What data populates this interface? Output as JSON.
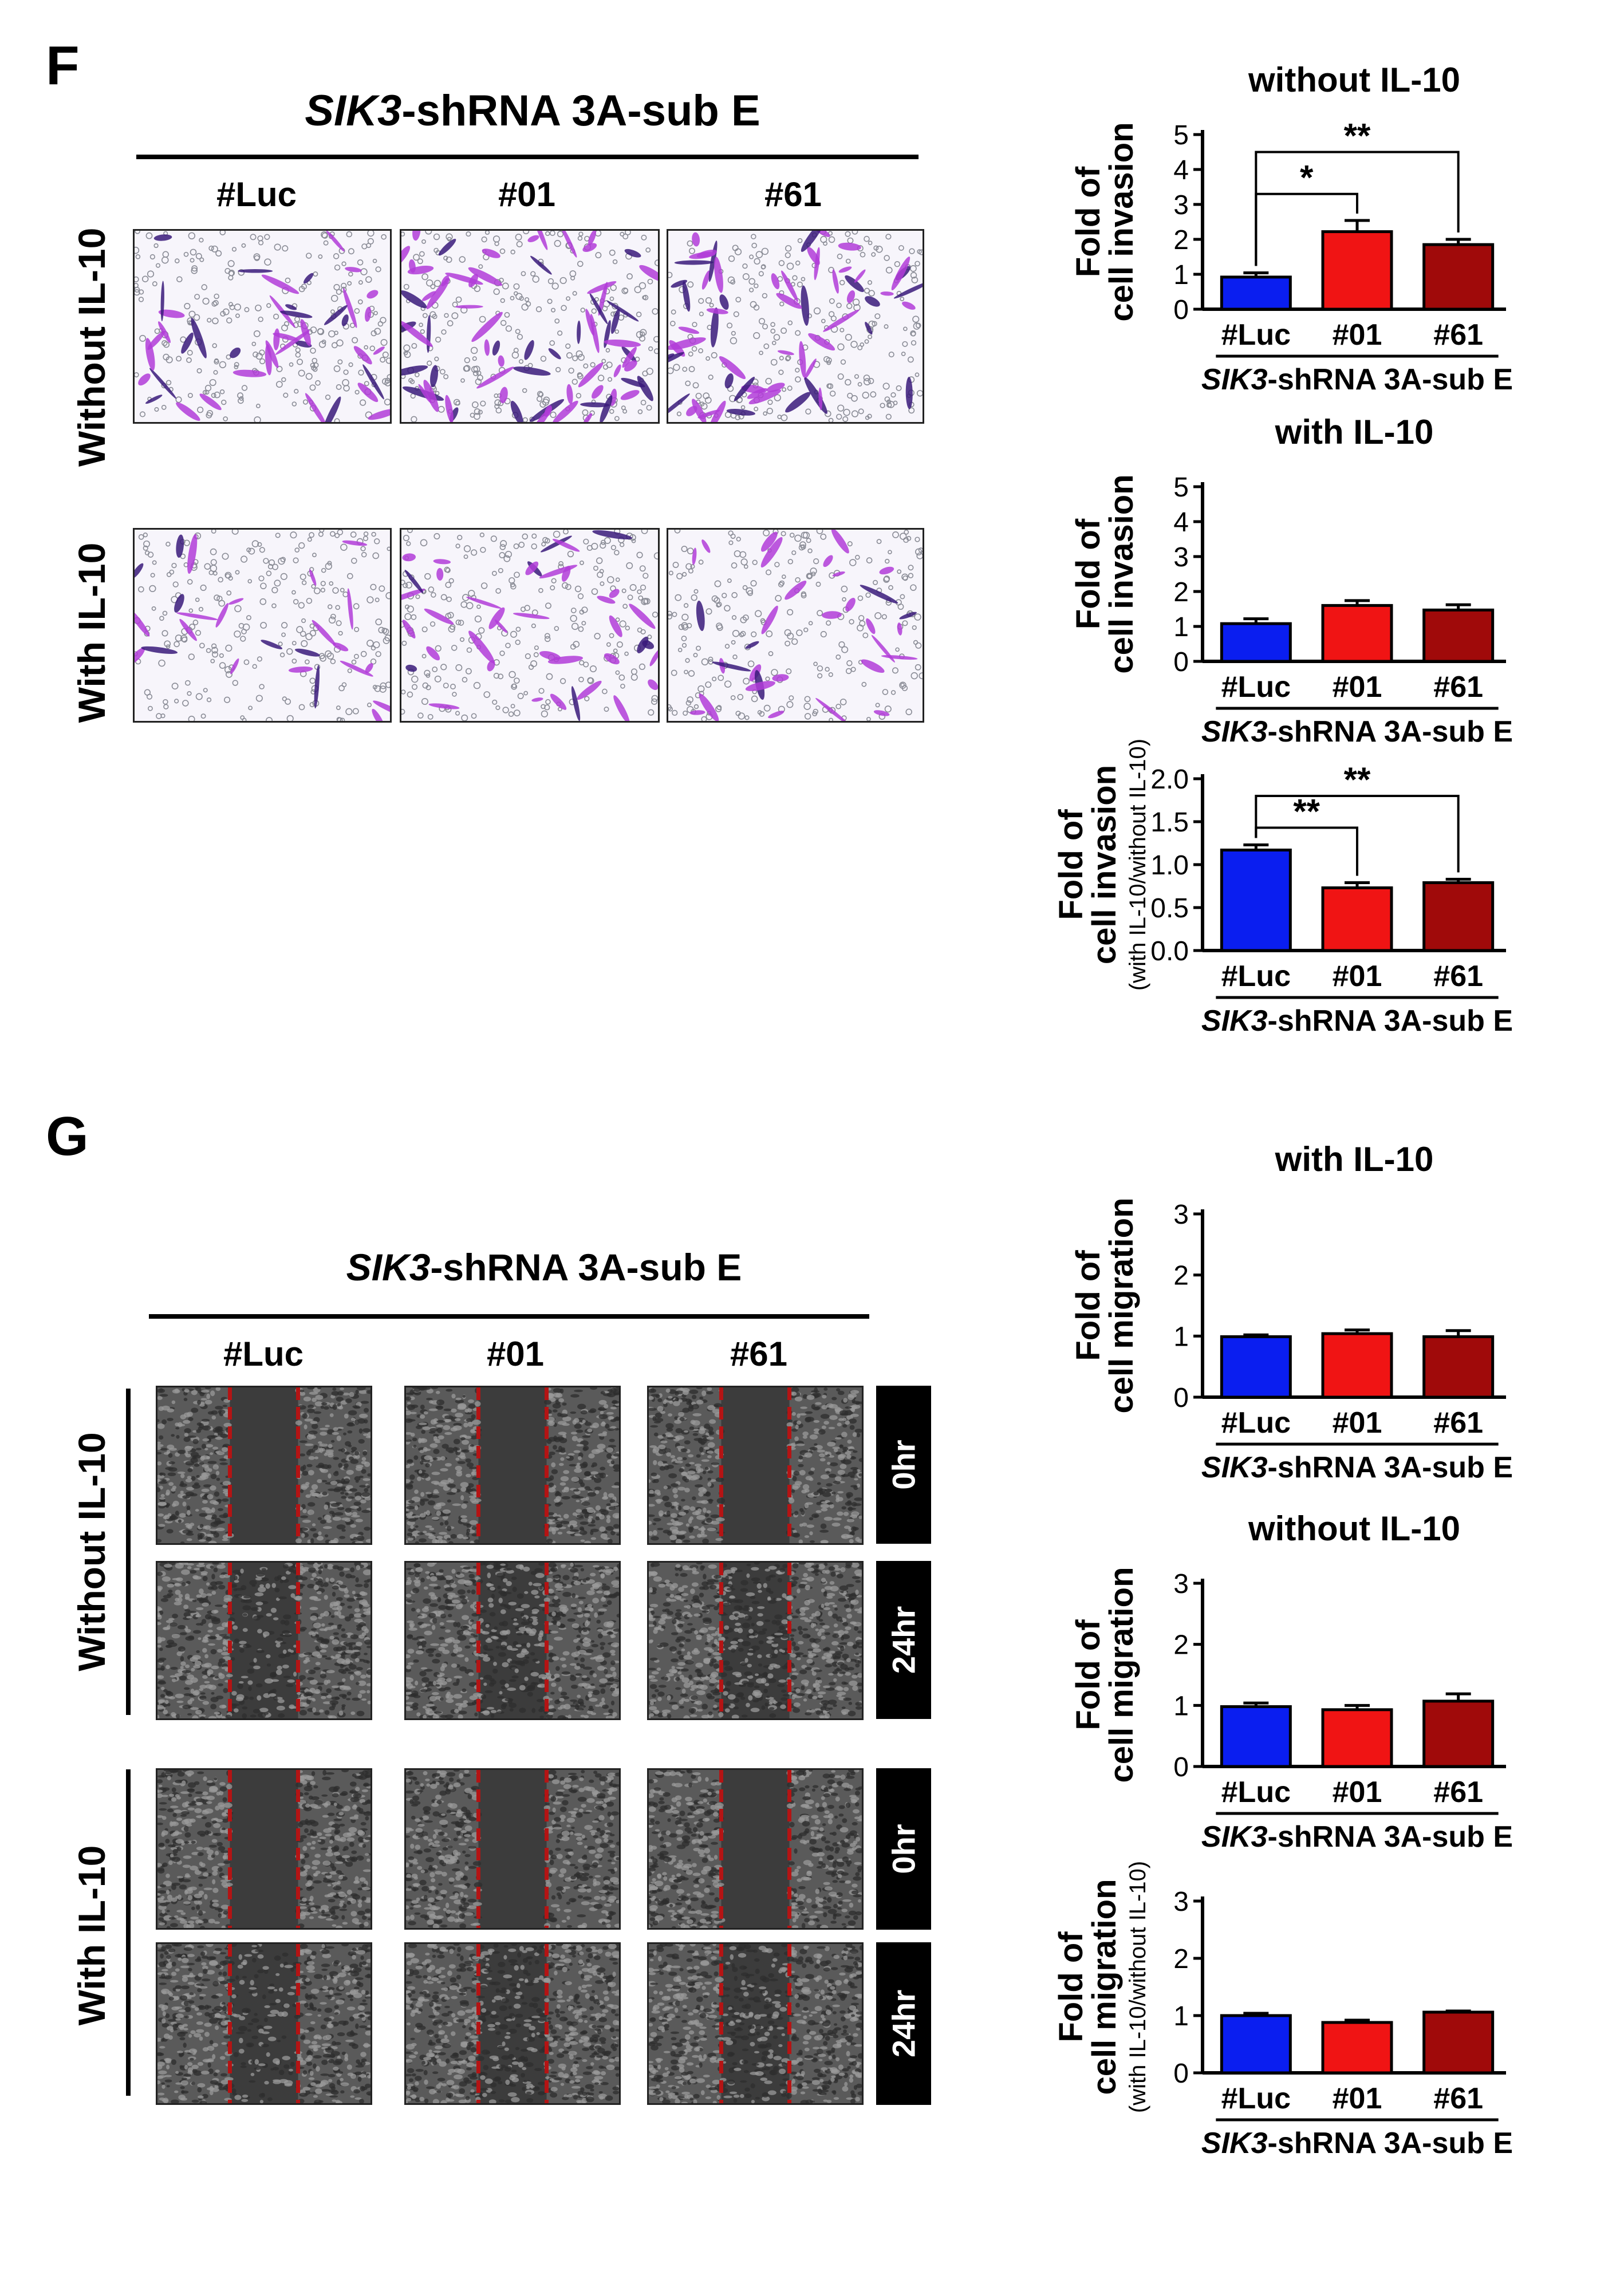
{
  "panel_f": {
    "letter": "F",
    "title_italic": "SIK3",
    "title_rest": "-shRNA 3A-sub E",
    "columns": [
      "#Luc",
      "#01",
      "#61"
    ],
    "rows": [
      "Without IL-10",
      "With IL-10"
    ]
  },
  "panel_g": {
    "letter": "G",
    "title_italic": "SIK3",
    "title_rest": "-shRNA 3A-sub E",
    "columns": [
      "#Luc",
      "#01",
      "#61"
    ],
    "rows": [
      "Without IL-10",
      "With IL-10"
    ],
    "time_labels": [
      "0hr",
      "24hr",
      "0hr",
      "24hr"
    ]
  },
  "colors": {
    "luc": "#0a1ef0",
    "c01": "#f01414",
    "c61": "#a00a0a",
    "scratch": "#b41414"
  },
  "chart_data": [
    {
      "type": "bar",
      "title": "without IL-10",
      "ylabel_lines": [
        "Fold of",
        "cell invasion"
      ],
      "ylabel_sub": "",
      "categories": [
        "#Luc",
        "#01",
        "#61"
      ],
      "values": [
        0.92,
        2.22,
        1.85
      ],
      "errors": [
        0.12,
        0.32,
        0.15
      ],
      "yticks": [
        "0",
        "1",
        "2",
        "3",
        "4",
        "5"
      ],
      "ylim": [
        0,
        5
      ],
      "xgroup_italic": "SIK3",
      "xgroup_rest": "-shRNA 3A-sub E",
      "significance": [
        {
          "from": 0,
          "to": 1,
          "label": "*"
        },
        {
          "from": 0,
          "to": 2,
          "label": "**"
        }
      ]
    },
    {
      "type": "bar",
      "title": "with IL-10",
      "ylabel_lines": [
        "Fold of",
        "cell invasion"
      ],
      "ylabel_sub": "",
      "categories": [
        "#Luc",
        "#01",
        "#61"
      ],
      "values": [
        1.08,
        1.6,
        1.47
      ],
      "errors": [
        0.14,
        0.14,
        0.15
      ],
      "yticks": [
        "0",
        "1",
        "2",
        "3",
        "4",
        "5"
      ],
      "ylim": [
        0,
        5
      ],
      "xgroup_italic": "SIK3",
      "xgroup_rest": "-shRNA 3A-sub E",
      "significance": []
    },
    {
      "type": "bar",
      "title": "",
      "ylabel_lines": [
        "Fold of",
        "cell invasion"
      ],
      "ylabel_sub": "(with IL-10/without IL-10)",
      "categories": [
        "#Luc",
        "#01",
        "#61"
      ],
      "values": [
        1.17,
        0.73,
        0.79
      ],
      "errors": [
        0.06,
        0.06,
        0.04
      ],
      "yticks": [
        "0.0",
        "0.5",
        "1.0",
        "1.5",
        "2.0"
      ],
      "ylim": [
        0,
        2
      ],
      "xgroup_italic": "SIK3",
      "xgroup_rest": "-shRNA 3A-sub E",
      "significance": [
        {
          "from": 0,
          "to": 1,
          "label": "**"
        },
        {
          "from": 0,
          "to": 2,
          "label": "**"
        }
      ]
    },
    {
      "type": "bar",
      "title": "with IL-10",
      "ylabel_lines": [
        "Fold of",
        "cell migration"
      ],
      "ylabel_sub": "",
      "categories": [
        "#Luc",
        "#01",
        "#61"
      ],
      "values": [
        0.99,
        1.04,
        0.99
      ],
      "errors": [
        0.03,
        0.06,
        0.1
      ],
      "yticks": [
        "0",
        "1",
        "2",
        "3"
      ],
      "ylim": [
        0,
        3
      ],
      "xgroup_italic": "SIK3",
      "xgroup_rest": "-shRNA 3A-sub E",
      "significance": []
    },
    {
      "type": "bar",
      "title": "without IL-10",
      "ylabel_lines": [
        "Fold of",
        "cell migration"
      ],
      "ylabel_sub": "",
      "categories": [
        "#Luc",
        "#01",
        "#61"
      ],
      "values": [
        0.98,
        0.93,
        1.07
      ],
      "errors": [
        0.06,
        0.07,
        0.12
      ],
      "yticks": [
        "0",
        "1",
        "2",
        "3"
      ],
      "ylim": [
        0,
        3
      ],
      "xgroup_italic": "SIK3",
      "xgroup_rest": "-shRNA 3A-sub E",
      "significance": []
    },
    {
      "type": "bar",
      "title": "",
      "ylabel_lines": [
        "Fold of",
        "cell migration"
      ],
      "ylabel_sub": "(with IL-10/without IL-10)",
      "categories": [
        "#Luc",
        "#01",
        "#61"
      ],
      "values": [
        1.0,
        0.88,
        1.06
      ],
      "errors": [
        0.04,
        0.04,
        0.02
      ],
      "yticks": [
        "0",
        "1",
        "2",
        "3"
      ],
      "ylim": [
        0,
        3
      ],
      "xgroup_italic": "SIK3",
      "xgroup_rest": "-shRNA 3A-sub E",
      "significance": []
    }
  ]
}
